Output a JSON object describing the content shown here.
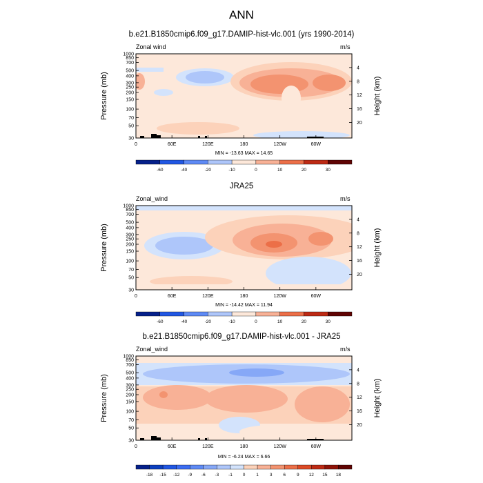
{
  "page_title": "ANN",
  "chart_data": [
    {
      "type": "heatmap",
      "title": "b.e21.B1850cmip6.f09_g17.DAMIP-hist-vlc.001 (yrs 1990-2014)",
      "left_label": "Zonal wind",
      "right_label": "m/s",
      "ylabel": "Pressure (mb)",
      "ylabel_right": "Height (km)",
      "x_ticks": [
        "0",
        "60E",
        "120E",
        "180",
        "120W",
        "60W"
      ],
      "y_ticks": [
        "30",
        "50",
        "70",
        "100",
        "150",
        "200",
        "250",
        "300",
        "400",
        "500",
        "700",
        "850",
        "1000"
      ],
      "height_ticks": [
        "20",
        "16",
        "12",
        "8",
        "4"
      ],
      "stats": "MIN = -13.63  MAX =  14.65",
      "levels": [
        "-60",
        "-40",
        "-20",
        "-10",
        "0",
        "10",
        "20",
        "30"
      ],
      "palette": [
        "#05208a",
        "#0c3fbf",
        "#2157e3",
        "#3b6df2",
        "#5e8af5",
        "#86a8f7",
        "#aec6fa",
        "#d3e3fc",
        "#fde8da",
        "#fcd2ba",
        "#f8b196",
        "#f39370",
        "#ec6f48",
        "#dc4a25",
        "#bd2a14",
        "#8f1308",
        "#600403"
      ]
    },
    {
      "type": "heatmap",
      "title": "JRA25",
      "left_label": "Zonal_wind",
      "right_label": "m/s",
      "ylabel": "Pressure (mb)",
      "ylabel_right": "Height (km)",
      "x_ticks": [
        "0",
        "60E",
        "120E",
        "180",
        "120W",
        "60W"
      ],
      "y_ticks": [
        "30",
        "50",
        "70",
        "100",
        "150",
        "200",
        "250",
        "300",
        "400",
        "500",
        "700",
        "850",
        "1000"
      ],
      "height_ticks": [
        "20",
        "16",
        "12",
        "8",
        "4"
      ],
      "stats": "MIN = -14.42  MAX =  11.94",
      "levels": [
        "-60",
        "-40",
        "-20",
        "-10",
        "0",
        "10",
        "20",
        "30"
      ],
      "palette": [
        "#05208a",
        "#0c3fbf",
        "#2157e3",
        "#3b6df2",
        "#5e8af5",
        "#86a8f7",
        "#aec6fa",
        "#d3e3fc",
        "#fde8da",
        "#fcd2ba",
        "#f8b196",
        "#f39370",
        "#ec6f48",
        "#dc4a25",
        "#bd2a14",
        "#8f1308",
        "#600403"
      ]
    },
    {
      "type": "heatmap",
      "title": "b.e21.B1850cmip6.f09_g17.DAMIP-hist-vlc.001 - JRA25",
      "left_label": "Zonal_wind",
      "right_label": "m/s",
      "ylabel": "Pressure (mb)",
      "ylabel_right": "Height (km)",
      "x_ticks": [
        "0",
        "60E",
        "120E",
        "180",
        "120W",
        "60W"
      ],
      "y_ticks": [
        "30",
        "50",
        "70",
        "100",
        "150",
        "200",
        "250",
        "300",
        "400",
        "500",
        "700",
        "850",
        "1000"
      ],
      "height_ticks": [
        "20",
        "16",
        "12",
        "8",
        "4"
      ],
      "stats": "MIN =  -6.24  MAX =   6.66",
      "levels": [
        "-18",
        "-15",
        "-12",
        "-9",
        "-6",
        "-3",
        "-1",
        "0",
        "1",
        "3",
        "6",
        "9",
        "12",
        "15",
        "18"
      ],
      "palette": [
        "#05208a",
        "#0c3fbf",
        "#2157e3",
        "#3b6df2",
        "#5e8af5",
        "#86a8f7",
        "#aec6fa",
        "#d3e3fc",
        "#fde8da",
        "#fcd2ba",
        "#f8b196",
        "#f39370",
        "#ec6f48",
        "#dc4a25",
        "#bd2a14",
        "#8f1308",
        "#600403"
      ]
    }
  ]
}
